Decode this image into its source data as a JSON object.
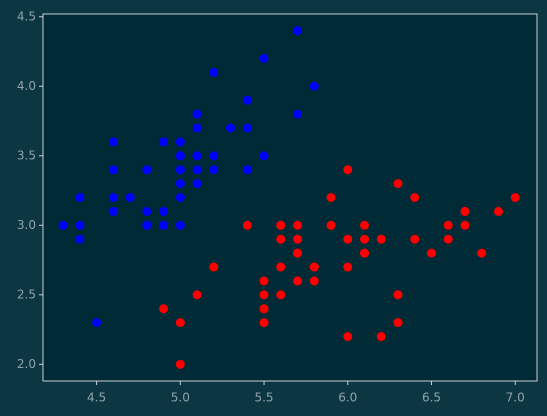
{
  "chart_data": {
    "type": "scatter",
    "xlim": [
      4.18,
      7.13
    ],
    "ylim": [
      1.88,
      4.52
    ],
    "xticks": [
      4.5,
      {
        "value": 5,
        "label": "5.0"
      },
      5.5,
      {
        "value": 6,
        "label": "6.0"
      },
      6.5,
      {
        "value": 7,
        "label": "7.0"
      }
    ],
    "yticks": [
      {
        "value": 2,
        "label": "2.0"
      },
      2.5,
      {
        "value": 3,
        "label": "3.0"
      },
      3.5,
      {
        "value": 4,
        "label": "4.0"
      },
      4.5
    ],
    "grid": false,
    "series": [
      {
        "color": "#0000ff",
        "x": [
          5.1,
          4.9,
          4.7,
          4.6,
          5.0,
          5.4,
          4.6,
          5.0,
          4.4,
          4.9,
          5.4,
          4.8,
          4.8,
          4.3,
          5.8,
          5.7,
          5.4,
          5.1,
          5.7,
          5.1,
          5.4,
          5.1,
          4.6,
          5.1,
          4.8,
          5.0,
          5.0,
          5.2,
          5.2,
          4.7,
          4.8,
          5.4,
          5.2,
          5.5,
          4.9,
          5.0,
          5.5,
          4.9,
          4.4,
          5.1,
          5.0,
          4.5,
          4.4,
          5.0,
          5.1,
          4.8,
          5.1,
          4.6,
          5.3,
          5.0
        ],
        "values": [
          3.5,
          3.0,
          3.2,
          3.1,
          3.6,
          3.9,
          3.4,
          3.4,
          2.9,
          3.1,
          3.7,
          3.4,
          3.0,
          3.0,
          4.0,
          4.4,
          3.9,
          3.5,
          3.8,
          3.8,
          3.4,
          3.7,
          3.6,
          3.3,
          3.4,
          3.0,
          3.4,
          3.5,
          3.4,
          3.2,
          3.1,
          3.4,
          4.1,
          4.2,
          3.1,
          3.2,
          3.5,
          3.6,
          3.0,
          3.4,
          3.5,
          2.3,
          3.2,
          3.5,
          3.8,
          3.0,
          3.8,
          3.2,
          3.7,
          3.3
        ]
      },
      {
        "color": "#ff0000",
        "x": [
          7.0,
          6.4,
          6.9,
          5.5,
          6.5,
          5.7,
          6.3,
          4.9,
          6.6,
          5.2,
          5.0,
          5.9,
          6.0,
          6.1,
          5.6,
          6.7,
          5.6,
          5.8,
          6.2,
          5.6,
          5.9,
          6.1,
          6.3,
          6.1,
          6.4,
          6.6,
          6.8,
          6.7,
          6.0,
          5.7,
          5.5,
          5.5,
          5.8,
          6.0,
          5.4,
          6.0,
          6.7,
          6.3,
          5.6,
          5.5,
          5.5,
          6.1,
          5.8,
          5.0,
          5.6,
          5.7,
          5.7,
          6.2,
          5.1,
          5.7
        ],
        "values": [
          3.2,
          3.2,
          3.1,
          2.3,
          2.8,
          2.8,
          3.3,
          2.4,
          2.9,
          2.7,
          2.0,
          3.0,
          2.2,
          2.9,
          2.9,
          3.1,
          3.0,
          2.7,
          2.2,
          2.5,
          3.2,
          2.8,
          2.5,
          2.8,
          2.9,
          3.0,
          2.8,
          3.0,
          2.9,
          2.6,
          2.4,
          2.4,
          2.7,
          2.7,
          3.0,
          3.4,
          3.1,
          2.3,
          3.0,
          2.5,
          2.6,
          3.0,
          2.6,
          2.3,
          2.7,
          3.0,
          2.9,
          2.9,
          2.5,
          2.8
        ]
      }
    ]
  }
}
